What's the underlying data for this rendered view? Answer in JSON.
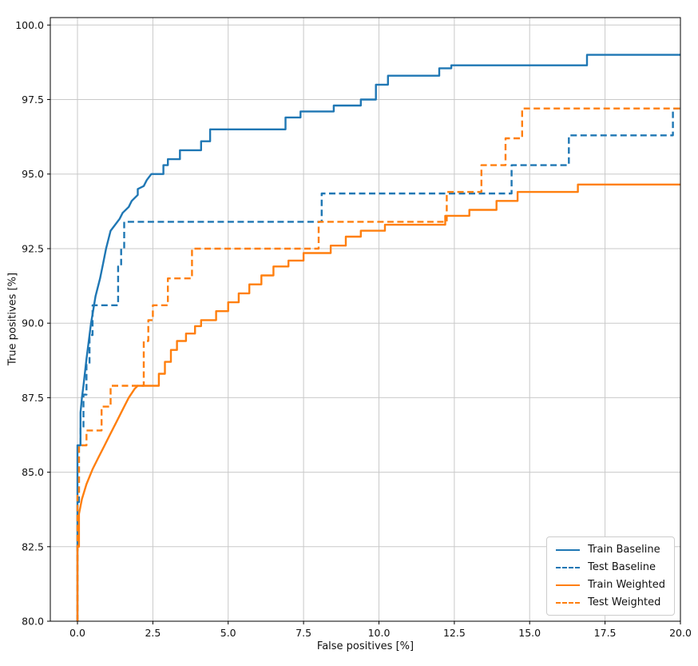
{
  "chart_data": {
    "type": "line",
    "title": "",
    "xlabel": "False positives [%]",
    "ylabel": "True positives [%]",
    "xlim": [
      -0.9,
      20.0
    ],
    "ylim": [
      80.0,
      100.25
    ],
    "xticks": [
      0,
      2.5,
      5,
      7.5,
      10,
      12.5,
      15,
      17.5,
      20
    ],
    "yticks": [
      80,
      82.5,
      85,
      87.5,
      90,
      92.5,
      95,
      97.5,
      100
    ],
    "grid": true,
    "legend_position": "lower right",
    "colors": {
      "blue": "#1f77b4",
      "orange": "#ff7f0e"
    },
    "series": [
      {
        "name": "Train Baseline",
        "color": "#1f77b4",
        "dash": false,
        "points": [
          [
            0,
            80
          ],
          [
            0,
            85.9
          ],
          [
            0.1,
            85.9
          ],
          [
            0.1,
            87.0
          ],
          [
            0.15,
            87.5
          ],
          [
            0.2,
            87.9
          ],
          [
            0.3,
            88.8
          ],
          [
            0.4,
            89.6
          ],
          [
            0.45,
            90.0
          ],
          [
            0.5,
            90.3
          ],
          [
            0.6,
            90.9
          ],
          [
            0.75,
            91.5
          ],
          [
            0.85,
            92.0
          ],
          [
            0.95,
            92.5
          ],
          [
            1.05,
            92.9
          ],
          [
            1.1,
            93.1
          ],
          [
            1.25,
            93.3
          ],
          [
            1.4,
            93.5
          ],
          [
            1.5,
            93.7
          ],
          [
            1.7,
            93.9
          ],
          [
            1.8,
            94.1
          ],
          [
            2.0,
            94.3
          ],
          [
            2.0,
            94.5
          ],
          [
            2.2,
            94.6
          ],
          [
            2.3,
            94.8
          ],
          [
            2.45,
            95.0
          ],
          [
            2.85,
            95.0
          ],
          [
            2.85,
            95.3
          ],
          [
            3.0,
            95.3
          ],
          [
            3.0,
            95.5
          ],
          [
            3.4,
            95.5
          ],
          [
            3.4,
            95.8
          ],
          [
            4.1,
            95.8
          ],
          [
            4.1,
            96.1
          ],
          [
            4.4,
            96.1
          ],
          [
            4.4,
            96.5
          ],
          [
            6.9,
            96.5
          ],
          [
            6.9,
            96.9
          ],
          [
            7.4,
            96.9
          ],
          [
            7.4,
            97.1
          ],
          [
            8.5,
            97.1
          ],
          [
            8.5,
            97.3
          ],
          [
            9.4,
            97.3
          ],
          [
            9.4,
            97.5
          ],
          [
            9.9,
            97.5
          ],
          [
            9.9,
            98.0
          ],
          [
            10.3,
            98.0
          ],
          [
            10.3,
            98.3
          ],
          [
            12.0,
            98.3
          ],
          [
            12.0,
            98.55
          ],
          [
            12.4,
            98.55
          ],
          [
            12.4,
            98.65
          ],
          [
            16.9,
            98.65
          ],
          [
            16.9,
            99.0
          ],
          [
            20,
            99.0
          ]
        ]
      },
      {
        "name": "Test Baseline",
        "color": "#1f77b4",
        "dash": true,
        "points": [
          [
            0,
            80
          ],
          [
            0,
            84.0
          ],
          [
            0.05,
            84.0
          ],
          [
            0.05,
            85.9
          ],
          [
            0.1,
            85.9
          ],
          [
            0.1,
            86.5
          ],
          [
            0.2,
            86.5
          ],
          [
            0.2,
            87.6
          ],
          [
            0.3,
            87.6
          ],
          [
            0.3,
            88.6
          ],
          [
            0.4,
            88.6
          ],
          [
            0.4,
            89.6
          ],
          [
            0.5,
            89.6
          ],
          [
            0.5,
            90.6
          ],
          [
            1.35,
            90.6
          ],
          [
            1.35,
            91.9
          ],
          [
            1.45,
            91.9
          ],
          [
            1.45,
            92.5
          ],
          [
            1.55,
            92.5
          ],
          [
            1.55,
            93.4
          ],
          [
            8.1,
            93.4
          ],
          [
            8.1,
            94.35
          ],
          [
            14.4,
            94.35
          ],
          [
            14.4,
            95.3
          ],
          [
            16.3,
            95.3
          ],
          [
            16.3,
            96.3
          ],
          [
            19.75,
            96.3
          ],
          [
            19.75,
            97.2
          ],
          [
            20,
            97.2
          ]
        ]
      },
      {
        "name": "Train Weighted",
        "color": "#ff7f0e",
        "dash": false,
        "points": [
          [
            0,
            80
          ],
          [
            0,
            82.5
          ],
          [
            0.05,
            82.5
          ],
          [
            0.05,
            83.6
          ],
          [
            0.15,
            84.1
          ],
          [
            0.3,
            84.6
          ],
          [
            0.5,
            85.1
          ],
          [
            0.7,
            85.5
          ],
          [
            0.9,
            85.9
          ],
          [
            1.1,
            86.3
          ],
          [
            1.3,
            86.7
          ],
          [
            1.5,
            87.1
          ],
          [
            1.7,
            87.5
          ],
          [
            1.9,
            87.8
          ],
          [
            2.0,
            87.9
          ],
          [
            2.7,
            87.9
          ],
          [
            2.7,
            88.3
          ],
          [
            2.9,
            88.3
          ],
          [
            2.9,
            88.7
          ],
          [
            3.1,
            88.7
          ],
          [
            3.1,
            89.1
          ],
          [
            3.3,
            89.1
          ],
          [
            3.3,
            89.4
          ],
          [
            3.6,
            89.4
          ],
          [
            3.6,
            89.65
          ],
          [
            3.9,
            89.65
          ],
          [
            3.9,
            89.9
          ],
          [
            4.1,
            89.9
          ],
          [
            4.1,
            90.1
          ],
          [
            4.6,
            90.1
          ],
          [
            4.6,
            90.4
          ],
          [
            5.0,
            90.4
          ],
          [
            5.0,
            90.7
          ],
          [
            5.35,
            90.7
          ],
          [
            5.35,
            91.0
          ],
          [
            5.7,
            91.0
          ],
          [
            5.7,
            91.3
          ],
          [
            6.1,
            91.3
          ],
          [
            6.1,
            91.6
          ],
          [
            6.5,
            91.6
          ],
          [
            6.5,
            91.9
          ],
          [
            7.0,
            91.9
          ],
          [
            7.0,
            92.1
          ],
          [
            7.5,
            92.1
          ],
          [
            7.5,
            92.35
          ],
          [
            8.4,
            92.35
          ],
          [
            8.4,
            92.6
          ],
          [
            8.9,
            92.6
          ],
          [
            8.9,
            92.9
          ],
          [
            9.4,
            92.9
          ],
          [
            9.4,
            93.1
          ],
          [
            10.2,
            93.1
          ],
          [
            10.2,
            93.3
          ],
          [
            12.2,
            93.3
          ],
          [
            12.2,
            93.6
          ],
          [
            13.0,
            93.6
          ],
          [
            13.0,
            93.8
          ],
          [
            13.9,
            93.8
          ],
          [
            13.9,
            94.1
          ],
          [
            14.6,
            94.1
          ],
          [
            14.6,
            94.4
          ],
          [
            16.6,
            94.4
          ],
          [
            16.6,
            94.65
          ],
          [
            20,
            94.65
          ]
        ]
      },
      {
        "name": "Test Weighted",
        "color": "#ff7f0e",
        "dash": true,
        "points": [
          [
            0,
            80
          ],
          [
            0,
            84.3
          ],
          [
            0.05,
            84.3
          ],
          [
            0.05,
            85.9
          ],
          [
            0.3,
            85.9
          ],
          [
            0.3,
            86.4
          ],
          [
            0.8,
            86.4
          ],
          [
            0.8,
            87.2
          ],
          [
            1.1,
            87.2
          ],
          [
            1.1,
            87.9
          ],
          [
            2.2,
            87.9
          ],
          [
            2.2,
            89.4
          ],
          [
            2.35,
            89.4
          ],
          [
            2.35,
            90.1
          ],
          [
            2.5,
            90.1
          ],
          [
            2.5,
            90.6
          ],
          [
            3.0,
            90.6
          ],
          [
            3.0,
            91.5
          ],
          [
            3.8,
            91.5
          ],
          [
            3.8,
            92.5
          ],
          [
            8.0,
            92.5
          ],
          [
            8.0,
            93.4
          ],
          [
            12.25,
            93.4
          ],
          [
            12.25,
            94.4
          ],
          [
            13.4,
            94.4
          ],
          [
            13.4,
            95.3
          ],
          [
            14.2,
            95.3
          ],
          [
            14.2,
            96.2
          ],
          [
            14.75,
            96.2
          ],
          [
            14.75,
            97.2
          ],
          [
            20,
            97.2
          ]
        ]
      }
    ]
  }
}
